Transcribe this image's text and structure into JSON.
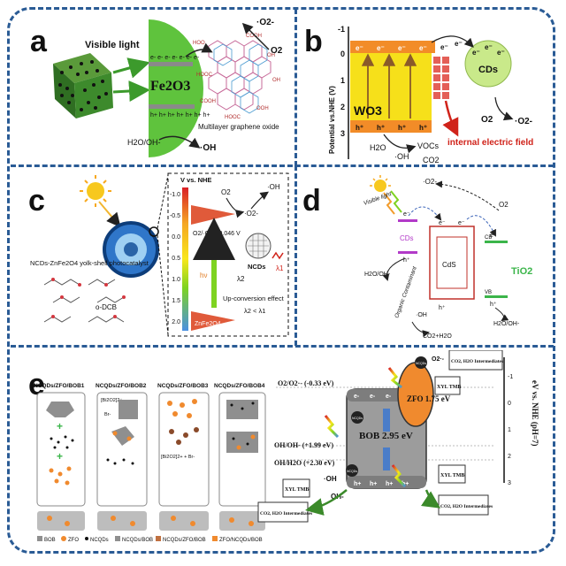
{
  "panels": {
    "a": {
      "label": "a",
      "visible_light": "Visible light",
      "catalyst": "Fe2O3",
      "electrons": "e- e- e- e- e- e- e-",
      "holes": "h+ h+ h+ h+ h+ h+ h+",
      "o2": "O2",
      "superoxide": "·O2-",
      "water": "H2O/OH-",
      "hydroxyl": "·OH",
      "graphene_label": "Multilayer graphene oxide",
      "groups": [
        "HOO",
        "COOH",
        "OH",
        "HOOC",
        "OH",
        "COOH",
        "OOH",
        "HOOC"
      ]
    },
    "b": {
      "label": "b",
      "y_axis": "Potential vs.NHE (V)",
      "ticks": [
        "-1",
        "0",
        "1",
        "2",
        "3"
      ],
      "material": "WO3",
      "cds": "CDs",
      "electric_field": "internal electric field",
      "o2": "O2",
      "superoxide": "·O2-",
      "water": "H2O",
      "hydroxyl": "·OH",
      "vocs": "VOCs",
      "co2": "CO2"
    },
    "c": {
      "label": "c",
      "particle": "NCDs-ZnFe2O4 yolk-shell photocatalyst",
      "axis_title": "V vs. NHE",
      "ticks": [
        "-1.0",
        "-0.5",
        "0.0",
        "0.5",
        "1.0",
        "1.5",
        "2.0"
      ],
      "redox_o2": "O2/·O2- -0.046 V",
      "o2": "O2",
      "superoxide": "·O2-",
      "hydroxyl": "·OH",
      "ncds": "NCDs",
      "lambda1": "λ1",
      "lambda2": "λ2",
      "hv": "hν",
      "znfe": "ZnFe2O4",
      "upconversion": "Up-conversion effect",
      "lambda_rel": "λ2 < λ1",
      "odcb": "o-DCB"
    },
    "d": {
      "label": "d",
      "visible_light": "Visible light",
      "superoxide": "·O2-",
      "o2": "O2",
      "cds": "CDs",
      "cds_material": "CdS",
      "tio2": "TiO2",
      "cb": "CB",
      "vb": "VB",
      "water_left": "H2O/OH-",
      "water_right": "H2O/OH-",
      "hydroxyl": "·OH",
      "contaminant": "Organic Contaminant",
      "products": "CO2+H2O"
    },
    "e": {
      "label": "e",
      "columns": [
        "NCQDs/ZFO/BOB1",
        "NCQDs/ZFO/BOB2",
        "NCQDs/ZFO/BOB3",
        "NCQDs/ZFO/BOB4"
      ],
      "intermediates": [
        "[Bi2O2]2+",
        "Br-",
        "[Bi2O2]2+ + Br-"
      ],
      "legend": [
        "BOB",
        "ZFO",
        "NCQDs",
        "NCQDs/BOB",
        "NCQDs/ZFO/BOB",
        "ZFO/NCQDs/BOB"
      ],
      "redox": [
        "O2/O2·- (-0.33 eV)",
        "OH/OH- (+1.99 eV)",
        "OH/H2O (+2.30 eV)"
      ],
      "bob": "BOB 2.95 eV",
      "zfo": "ZFO 1.75 eV",
      "ncqds": "NCQDs",
      "axis_title": "eV vs. NHE (pH=7)",
      "ticks": [
        "-1",
        "0",
        "1",
        "2",
        "3"
      ],
      "xyl_tmb": "XYL TMB",
      "products": "CO2, H2O Intermediates",
      "oh_minus": "OH-",
      "oh_radical": "·OH",
      "superoxide": "O2·-",
      "electron": "e-",
      "hole": "h+"
    }
  },
  "colors": {
    "frame": "#2a5b95",
    "fe2o3": "#5fc33d",
    "band_orange": "#f28c28",
    "wo3_yellow": "#f6e01a",
    "cds_green": "#c9e98a",
    "bob_gray": "#9c9c9c",
    "zfo_orange": "#f08a2e",
    "field_red": "#d0231a",
    "tio2_green": "#3bb54a"
  }
}
